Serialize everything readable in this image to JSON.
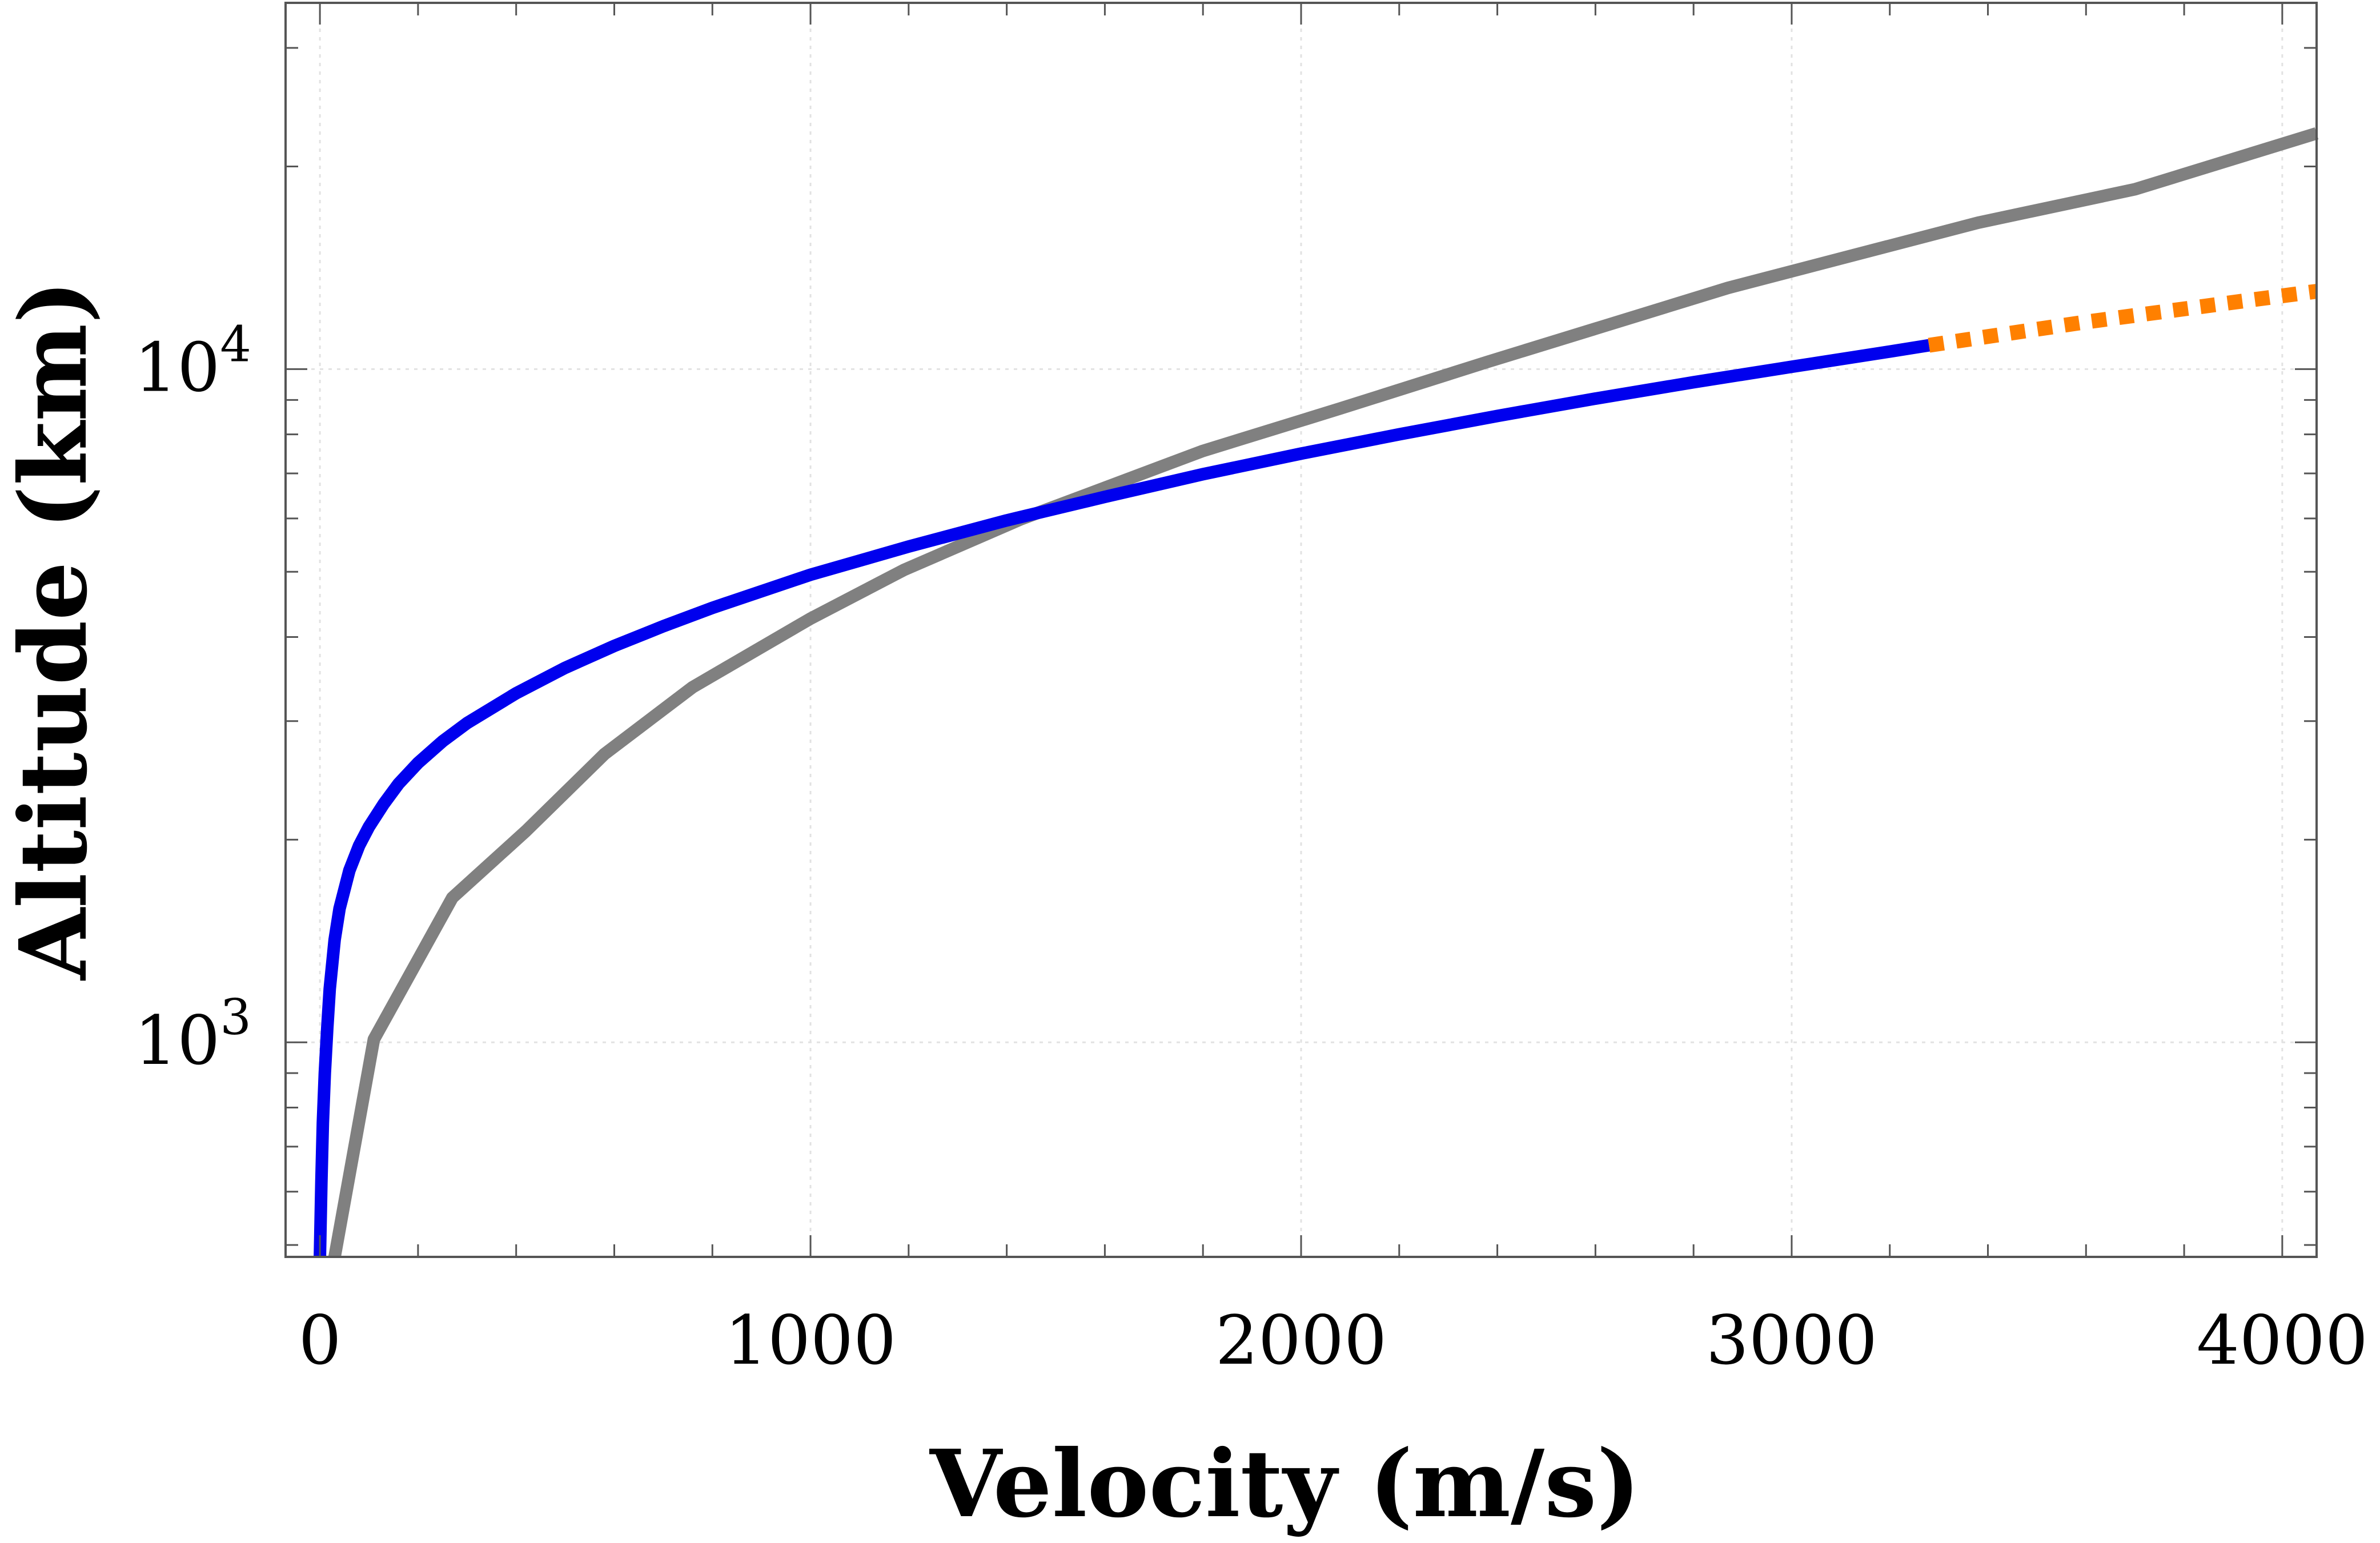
{
  "chart_data": {
    "type": "line",
    "title": "",
    "xlabel": "Velocity (m/s)",
    "ylabel": "Altitude (km)",
    "xscale": "linear",
    "yscale": "log",
    "xlim": [
      -70,
      4070
    ],
    "ylim": [
      480,
      35000
    ],
    "xticks": [
      {
        "value": 0,
        "label": "0"
      },
      {
        "value": 1000,
        "label": "1000"
      },
      {
        "value": 2000,
        "label": "2000"
      },
      {
        "value": 3000,
        "label": "3000"
      },
      {
        "value": 4000,
        "label": "4000"
      }
    ],
    "yticks": [
      {
        "value": 1000,
        "base": "10",
        "exp": "3"
      },
      {
        "value": 10000,
        "base": "10",
        "exp": "4"
      }
    ],
    "grid": true,
    "series": [
      {
        "name": "blue-solid",
        "color": "#0000ee",
        "style": "solid",
        "x": [
          0,
          3,
          6,
          10,
          15,
          20,
          30,
          40,
          60,
          80,
          100,
          130,
          160,
          200,
          250,
          300,
          400,
          500,
          600,
          700,
          800,
          1000,
          1200,
          1400,
          1600,
          1800,
          2000,
          2200,
          2400,
          2600,
          2800,
          3000,
          3200,
          3280
        ],
        "y": [
          480,
          620,
          760,
          900,
          1050,
          1200,
          1420,
          1580,
          1800,
          1960,
          2090,
          2260,
          2420,
          2600,
          2800,
          2980,
          3300,
          3600,
          3880,
          4150,
          4420,
          4950,
          5450,
          5960,
          6460,
          6980,
          7490,
          8000,
          8520,
          9040,
          9560,
          10080,
          10620,
          10850
        ]
      },
      {
        "name": "orange-dotted",
        "color": "#ff8000",
        "style": "dotted",
        "x": [
          3280,
          3600,
          4000,
          4070
        ],
        "y": [
          10850,
          11750,
          12850,
          13050
        ]
      },
      {
        "name": "gray-solid",
        "color": "#808080",
        "style": "solid",
        "x": [
          30,
          110,
          270,
          420,
          580,
          760,
          1000,
          1190,
          1430,
          1800,
          2080,
          2380,
          2870,
          3380,
          3700,
          4070
        ],
        "y": [
          480,
          1010,
          1640,
          2060,
          2680,
          3370,
          4260,
          5030,
          5990,
          7560,
          8740,
          10250,
          13200,
          16500,
          18500,
          22400
        ]
      }
    ]
  }
}
